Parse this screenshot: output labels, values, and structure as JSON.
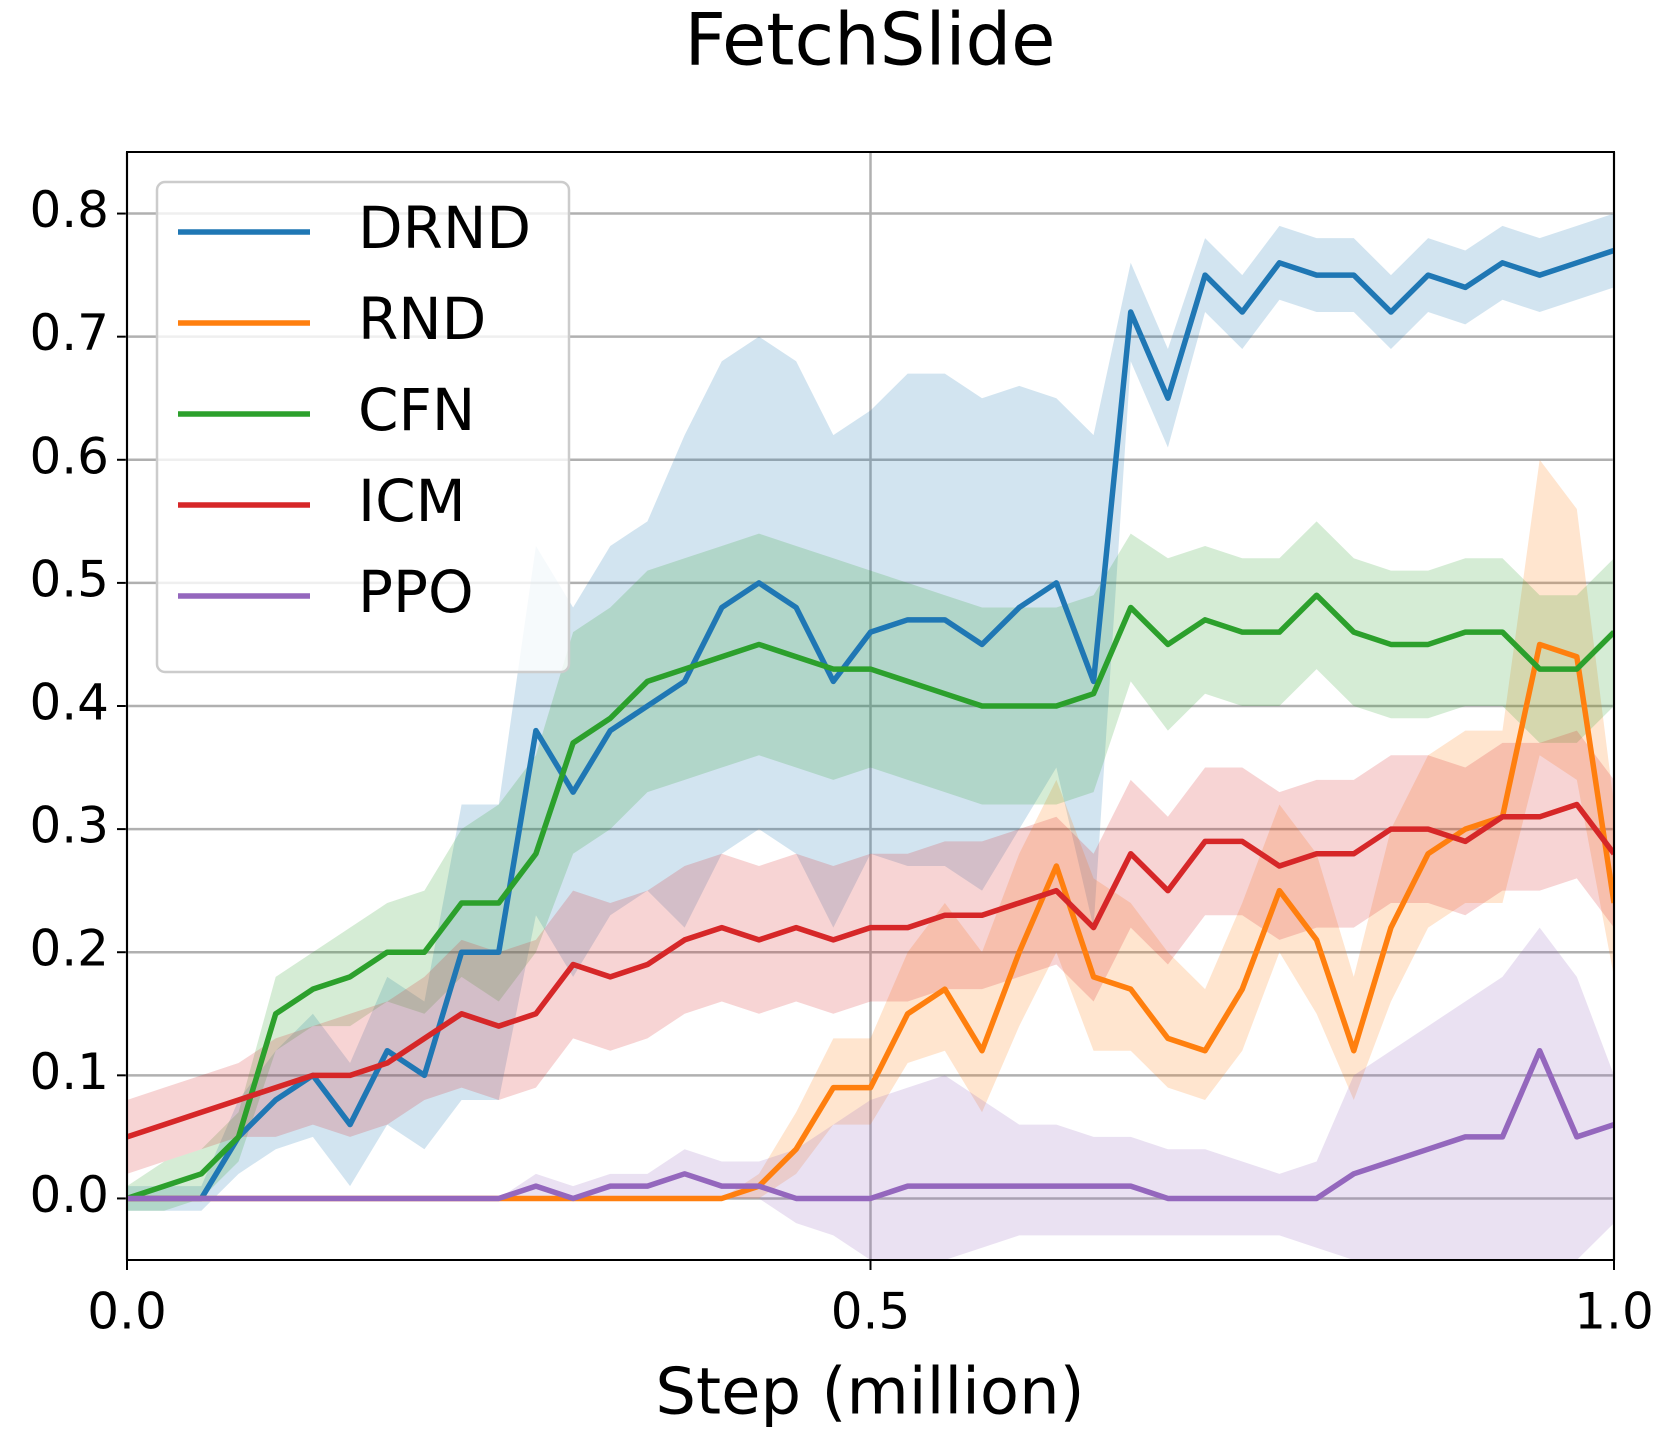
{
  "chart_data": {
    "type": "line",
    "title": "FetchSlide",
    "x_label": "Step (million)",
    "xlim": [
      0,
      1
    ],
    "xticks": [
      {
        "value": 0,
        "label": "0.0"
      },
      0.5,
      {
        "value": 1,
        "label": "1.0"
      }
    ],
    "ylim": [
      -0.05,
      0.85
    ],
    "yticks": [
      {
        "value": 0,
        "label": "0.0"
      },
      0.1,
      0.2,
      0.3,
      0.4,
      0.5,
      0.6,
      0.7,
      0.8
    ],
    "grid": true,
    "legend": "upper-left",
    "band_opacity": 0.2,
    "x": [
      0,
      0.025,
      0.05,
      0.075,
      0.1,
      0.125,
      0.15,
      0.175,
      0.2,
      0.225,
      0.25,
      0.275,
      0.3,
      0.325,
      0.35,
      0.375,
      0.4,
      0.425,
      0.45,
      0.475,
      0.5,
      0.525,
      0.55,
      0.575,
      0.6,
      0.625,
      0.65,
      0.675,
      0.7,
      0.725,
      0.75,
      0.775,
      0.8,
      0.825,
      0.85,
      0.875,
      0.9,
      0.925,
      0.95,
      0.975,
      1
    ],
    "series": [
      {
        "name": "DRND",
        "color": "#1f77b4",
        "values": [
          0,
          0,
          0,
          0.05,
          0.08,
          0.1,
          0.06,
          0.12,
          0.1,
          0.2,
          0.2,
          0.38,
          0.33,
          0.38,
          0.4,
          0.42,
          0.48,
          0.5,
          0.48,
          0.42,
          0.46,
          0.47,
          0.47,
          0.45,
          0.48,
          0.5,
          0.42,
          0.72,
          0.65,
          0.75,
          0.72,
          0.76,
          0.75,
          0.75,
          0.72,
          0.75,
          0.74,
          0.76,
          0.75,
          0.76,
          0.77
        ],
        "lower": [
          -0.01,
          -0.01,
          -0.01,
          0.02,
          0.04,
          0.05,
          0.01,
          0.06,
          0.04,
          0.08,
          0.08,
          0.23,
          0.18,
          0.23,
          0.25,
          0.22,
          0.28,
          0.3,
          0.28,
          0.22,
          0.28,
          0.27,
          0.27,
          0.25,
          0.3,
          0.35,
          0.22,
          0.68,
          0.61,
          0.72,
          0.69,
          0.73,
          0.72,
          0.72,
          0.69,
          0.72,
          0.71,
          0.73,
          0.72,
          0.73,
          0.74
        ],
        "upper": [
          0.01,
          0.01,
          0.01,
          0.08,
          0.12,
          0.15,
          0.11,
          0.18,
          0.16,
          0.32,
          0.32,
          0.53,
          0.48,
          0.53,
          0.55,
          0.62,
          0.68,
          0.7,
          0.68,
          0.62,
          0.64,
          0.67,
          0.67,
          0.65,
          0.66,
          0.65,
          0.62,
          0.76,
          0.69,
          0.78,
          0.75,
          0.79,
          0.78,
          0.78,
          0.75,
          0.78,
          0.77,
          0.79,
          0.78,
          0.79,
          0.8
        ]
      },
      {
        "name": "RND",
        "color": "#ff7f0e",
        "values": [
          0,
          0,
          0,
          0,
          0,
          0,
          0,
          0,
          0,
          0,
          0,
          0,
          0,
          0,
          0,
          0,
          0,
          0.01,
          0.04,
          0.09,
          0.09,
          0.15,
          0.17,
          0.12,
          0.2,
          0.27,
          0.18,
          0.17,
          0.13,
          0.12,
          0.17,
          0.25,
          0.21,
          0.12,
          0.22,
          0.28,
          0.3,
          0.31,
          0.45,
          0.44,
          0.24
        ],
        "lower": [
          0,
          0,
          0,
          0,
          0,
          0,
          0,
          0,
          0,
          0,
          0,
          0,
          0,
          0,
          0,
          0,
          0,
          0,
          0.02,
          0.06,
          0.06,
          0.11,
          0.12,
          0.07,
          0.14,
          0.2,
          0.12,
          0.12,
          0.09,
          0.08,
          0.12,
          0.2,
          0.15,
          0.08,
          0.16,
          0.22,
          0.24,
          0.24,
          0.36,
          0.34,
          0.18
        ],
        "upper": [
          0,
          0,
          0,
          0,
          0,
          0,
          0,
          0,
          0,
          0,
          0,
          0,
          0,
          0,
          0,
          0,
          0,
          0.02,
          0.07,
          0.13,
          0.13,
          0.2,
          0.24,
          0.2,
          0.28,
          0.34,
          0.26,
          0.24,
          0.2,
          0.17,
          0.24,
          0.32,
          0.28,
          0.18,
          0.3,
          0.36,
          0.38,
          0.38,
          0.6,
          0.56,
          0.32
        ]
      },
      {
        "name": "CFN",
        "color": "#2ca02c",
        "values": [
          0,
          0.01,
          0.02,
          0.05,
          0.15,
          0.17,
          0.18,
          0.2,
          0.2,
          0.24,
          0.24,
          0.28,
          0.37,
          0.39,
          0.42,
          0.43,
          0.44,
          0.45,
          0.44,
          0.43,
          0.43,
          0.42,
          0.41,
          0.4,
          0.4,
          0.4,
          0.41,
          0.48,
          0.45,
          0.47,
          0.46,
          0.46,
          0.49,
          0.46,
          0.45,
          0.45,
          0.46,
          0.46,
          0.43,
          0.43,
          0.46
        ],
        "lower": [
          -0.01,
          -0.01,
          0,
          0.03,
          0.12,
          0.14,
          0.14,
          0.16,
          0.15,
          0.18,
          0.16,
          0.2,
          0.28,
          0.3,
          0.33,
          0.34,
          0.35,
          0.36,
          0.35,
          0.34,
          0.35,
          0.34,
          0.33,
          0.32,
          0.32,
          0.32,
          0.33,
          0.42,
          0.38,
          0.41,
          0.4,
          0.4,
          0.43,
          0.4,
          0.39,
          0.39,
          0.4,
          0.4,
          0.37,
          0.37,
          0.4
        ],
        "upper": [
          0.01,
          0.03,
          0.04,
          0.07,
          0.18,
          0.2,
          0.22,
          0.24,
          0.25,
          0.3,
          0.32,
          0.36,
          0.46,
          0.48,
          0.51,
          0.52,
          0.53,
          0.54,
          0.53,
          0.52,
          0.51,
          0.5,
          0.49,
          0.48,
          0.48,
          0.48,
          0.49,
          0.54,
          0.52,
          0.53,
          0.52,
          0.52,
          0.55,
          0.52,
          0.51,
          0.51,
          0.52,
          0.52,
          0.49,
          0.49,
          0.52
        ]
      },
      {
        "name": "ICM",
        "color": "#d62728",
        "values": [
          0.05,
          0.06,
          0.07,
          0.08,
          0.09,
          0.1,
          0.1,
          0.11,
          0.13,
          0.15,
          0.14,
          0.15,
          0.19,
          0.18,
          0.19,
          0.21,
          0.22,
          0.21,
          0.22,
          0.21,
          0.22,
          0.22,
          0.23,
          0.23,
          0.24,
          0.25,
          0.22,
          0.28,
          0.25,
          0.29,
          0.29,
          0.27,
          0.28,
          0.28,
          0.3,
          0.3,
          0.29,
          0.31,
          0.31,
          0.32,
          0.28
        ],
        "lower": [
          0.02,
          0.03,
          0.04,
          0.05,
          0.05,
          0.06,
          0.05,
          0.06,
          0.08,
          0.09,
          0.08,
          0.09,
          0.13,
          0.12,
          0.13,
          0.15,
          0.16,
          0.15,
          0.16,
          0.15,
          0.16,
          0.16,
          0.17,
          0.17,
          0.18,
          0.19,
          0.16,
          0.22,
          0.19,
          0.23,
          0.23,
          0.21,
          0.22,
          0.22,
          0.24,
          0.24,
          0.23,
          0.25,
          0.25,
          0.26,
          0.22
        ],
        "upper": [
          0.08,
          0.09,
          0.1,
          0.11,
          0.13,
          0.14,
          0.15,
          0.16,
          0.18,
          0.21,
          0.2,
          0.21,
          0.25,
          0.24,
          0.25,
          0.27,
          0.28,
          0.27,
          0.28,
          0.27,
          0.28,
          0.28,
          0.29,
          0.29,
          0.3,
          0.31,
          0.28,
          0.34,
          0.31,
          0.35,
          0.35,
          0.33,
          0.34,
          0.34,
          0.36,
          0.36,
          0.35,
          0.37,
          0.37,
          0.38,
          0.34
        ]
      },
      {
        "name": "PPO",
        "color": "#9467bd",
        "values": [
          0,
          0,
          0,
          0,
          0,
          0,
          0,
          0,
          0,
          0,
          0,
          0.01,
          0,
          0.01,
          0.01,
          0.02,
          0.01,
          0.01,
          0,
          0,
          0,
          0.01,
          0.01,
          0.01,
          0.01,
          0.01,
          0.01,
          0.01,
          0,
          0,
          0,
          0,
          0,
          0.02,
          0.03,
          0.04,
          0.05,
          0.05,
          0.12,
          0.05,
          0.06
        ],
        "lower": [
          0,
          0,
          0,
          0,
          0,
          0,
          0,
          0,
          0,
          0,
          0,
          0,
          0,
          0,
          0,
          0,
          0,
          0,
          -0.02,
          -0.03,
          -0.05,
          -0.05,
          -0.05,
          -0.04,
          -0.03,
          -0.03,
          -0.03,
          -0.03,
          -0.03,
          -0.03,
          -0.03,
          -0.03,
          -0.04,
          -0.05,
          -0.05,
          -0.05,
          -0.05,
          -0.05,
          -0.05,
          -0.05,
          -0.02
        ],
        "upper": [
          0,
          0,
          0,
          0,
          0,
          0,
          0,
          0,
          0,
          0,
          0,
          0.02,
          0.01,
          0.02,
          0.02,
          0.04,
          0.03,
          0.03,
          0.04,
          0.06,
          0.08,
          0.09,
          0.1,
          0.08,
          0.06,
          0.06,
          0.05,
          0.05,
          0.04,
          0.04,
          0.03,
          0.02,
          0.03,
          0.1,
          0.12,
          0.14,
          0.16,
          0.18,
          0.22,
          0.18,
          0.1
        ]
      }
    ]
  }
}
